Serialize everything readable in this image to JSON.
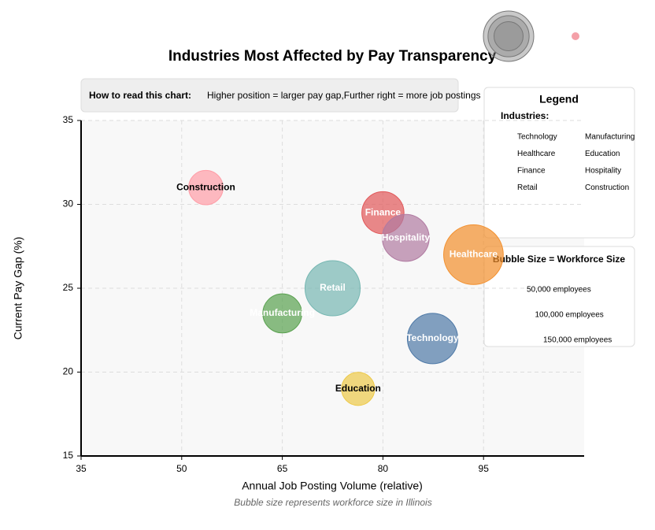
{
  "chart_data": {
    "type": "bubble",
    "title": "Industries Most Affected by Pay Transparency",
    "info": {
      "heading": "How to read this chart:",
      "text": "Higher position = larger pay gap,Further right = more job postings"
    },
    "x_label": "Annual Job Posting Volume (relative)",
    "y_label": "Current Pay Gap (%)",
    "caption": "Bubble size represents workforce size in Illinois",
    "xlim": [
      35,
      110
    ],
    "xticks": [
      35,
      50,
      65,
      80,
      95
    ],
    "ylim": [
      15,
      35
    ],
    "yticks": [
      15,
      20,
      25,
      30,
      35
    ],
    "grid": true,
    "legend": {
      "title": "Legend",
      "heading": "Industries:"
    },
    "size_legend": {
      "title": "Bubble Size = Workforce Size",
      "values": [
        50000,
        100000,
        150000
      ],
      "labels": [
        "50,000 employees",
        "100,000 employees",
        "150,000 employees"
      ]
    },
    "series": [
      {
        "name": "Technology",
        "color": "#4e79a7",
        "label_color": "#ffffff",
        "x": [
          87.4
        ],
        "values": [
          22
        ],
        "sizes": [
          150000
        ]
      },
      {
        "name": "Manufacturing",
        "color": "#59a14f",
        "label_color": "#ffffff",
        "x": [
          65
        ],
        "values": [
          23.5
        ],
        "sizes": [
          90000
        ]
      },
      {
        "name": "Healthcare",
        "color": "#f28e2b",
        "label_color": "#ffffff",
        "x": [
          93.5
        ],
        "values": [
          27
        ],
        "sizes": [
          210000
        ]
      },
      {
        "name": "Education",
        "color": "#edc948",
        "label_color": "#000000",
        "x": [
          76.3
        ],
        "values": [
          19
        ],
        "sizes": [
          65000
        ]
      },
      {
        "name": "Finance",
        "color": "#e15759",
        "label_color": "#ffffff",
        "x": [
          80
        ],
        "values": [
          29.5
        ],
        "sizes": [
          105000
        ]
      },
      {
        "name": "Hospitality",
        "color": "#b07aa1",
        "label_color": "#ffffff",
        "x": [
          83.4
        ],
        "values": [
          28
        ],
        "sizes": [
          130000
        ]
      },
      {
        "name": "Retail",
        "color": "#76b7b2",
        "label_color": "#ffffff",
        "x": [
          72.5
        ],
        "values": [
          25
        ],
        "sizes": [
          180000
        ]
      },
      {
        "name": "Construction",
        "color": "#ff9da7",
        "label_color": "#000000",
        "x": [
          53.6
        ],
        "values": [
          31
        ],
        "sizes": [
          70000
        ]
      }
    ]
  }
}
